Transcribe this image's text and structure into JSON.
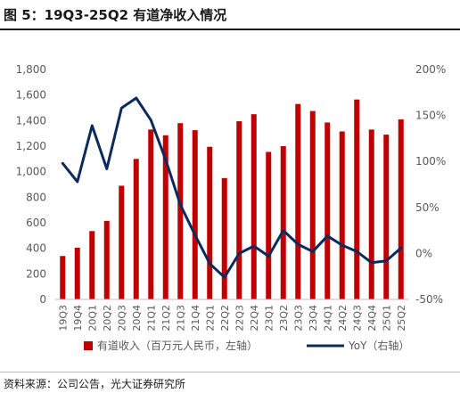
{
  "title": "图 5：19Q3-25Q2 有道净收入情况",
  "source": "资料来源：公司公告，光大证券研究所",
  "colors": {
    "bar": "#c00000",
    "line": "#0d2a5c",
    "axis": "#bfbfbf",
    "text": "#595959"
  },
  "chart_data": {
    "type": "bar",
    "categories": [
      "19Q3",
      "19Q4",
      "20Q1",
      "20Q2",
      "20Q3",
      "20Q4",
      "21Q1",
      "21Q2",
      "21Q3",
      "21Q4",
      "22Q1",
      "22Q2",
      "22Q3",
      "22Q4",
      "23Q1",
      "23Q2",
      "23Q3",
      "23Q4",
      "24Q1",
      "24Q2",
      "24Q3",
      "24Q4",
      "25Q1",
      "25Q2"
    ],
    "series": [
      {
        "name": "有道收入（百万元人民币，左轴）",
        "type": "bar",
        "axis": "left",
        "values": [
          340,
          405,
          535,
          615,
          890,
          1100,
          1330,
          1285,
          1380,
          1325,
          1195,
          950,
          1395,
          1450,
          1155,
          1200,
          1530,
          1475,
          1385,
          1315,
          1565,
          1330,
          1290,
          1410
        ]
      },
      {
        "name": "YoY（右轴）",
        "type": "line",
        "axis": "right",
        "values": [
          0.98,
          0.78,
          1.39,
          0.92,
          1.58,
          1.69,
          1.45,
          1.02,
          0.53,
          0.2,
          -0.11,
          -0.26,
          0.0,
          0.08,
          -0.03,
          0.25,
          0.1,
          0.02,
          0.19,
          0.09,
          0.02,
          -0.1,
          -0.08,
          0.06
        ]
      }
    ],
    "left_axis": {
      "min": 0,
      "max": 1800,
      "step": 200
    },
    "right_axis": {
      "min": -0.5,
      "max": 2.0,
      "step": 0.5,
      "tick_labels": [
        "-50%",
        "0%",
        "50%",
        "100%",
        "150%",
        "200%"
      ]
    },
    "left_tick_labels": [
      "0",
      "200",
      "400",
      "600",
      "800",
      "1,000",
      "1,200",
      "1,400",
      "1,600",
      "1,800"
    ],
    "legend": [
      "有道收入（百万元人民币，左轴）",
      "YoY（右轴）"
    ],
    "legend_position": "bottom",
    "grid": false
  }
}
